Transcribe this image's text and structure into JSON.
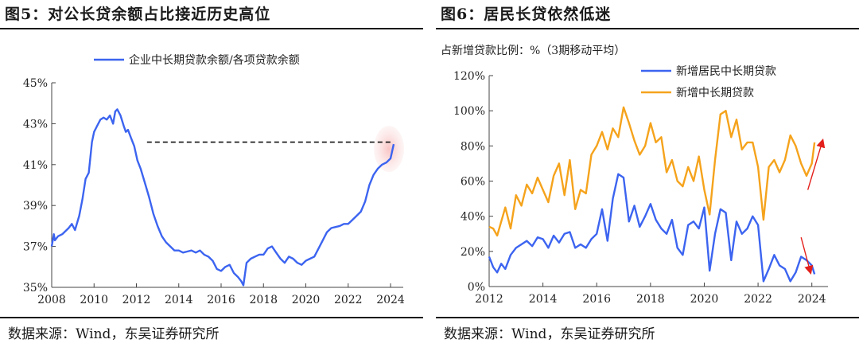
{
  "left": {
    "title": "图5：对公长贷余额占比接近历史高位",
    "source": "数据来源：Wind，东吴证券研究所",
    "chart_data": {
      "type": "line",
      "title": "",
      "ylabel": "",
      "xlabel": "",
      "xlim": [
        2008,
        2024.6
      ],
      "ylim": [
        35,
        45
      ],
      "yticks": [
        35,
        37,
        39,
        41,
        43,
        45
      ],
      "ytick_labels": [
        "35%",
        "37%",
        "39%",
        "41%",
        "43%",
        "45%"
      ],
      "xticks": [
        2008,
        2010,
        2012,
        2014,
        2016,
        2018,
        2020,
        2022,
        2024
      ],
      "xtick_labels": [
        "2008",
        "2010",
        "2012",
        "2014",
        "2016",
        "2018",
        "2020",
        "2022",
        "2024"
      ],
      "legend": "top-center",
      "series": [
        {
          "name": "企业中长期贷款余额/各项贷款余额",
          "color": "#3c64f0",
          "x": [
            2008.0,
            2008.1,
            2008.15,
            2008.3,
            2008.5,
            2008.8,
            2008.95,
            2009.1,
            2009.3,
            2009.45,
            2009.6,
            2009.75,
            2009.9,
            2010.0,
            2010.15,
            2010.3,
            2010.45,
            2010.6,
            2010.75,
            2010.9,
            2011.0,
            2011.1,
            2011.25,
            2011.4,
            2011.5,
            2011.6,
            2011.75,
            2011.9,
            2012.05,
            2012.2,
            2012.4,
            2012.6,
            2012.8,
            2013.0,
            2013.2,
            2013.4,
            2013.6,
            2013.8,
            2014.0,
            2014.2,
            2014.4,
            2014.6,
            2014.8,
            2015.0,
            2015.2,
            2015.4,
            2015.6,
            2015.8,
            2016.0,
            2016.2,
            2016.4,
            2016.6,
            2016.8,
            2016.95,
            2017.05,
            2017.2,
            2017.4,
            2017.6,
            2017.8,
            2018.0,
            2018.2,
            2018.4,
            2018.6,
            2018.8,
            2019.0,
            2019.2,
            2019.4,
            2019.6,
            2019.8,
            2020.0,
            2020.2,
            2020.4,
            2020.6,
            2020.8,
            2021.0,
            2021.2,
            2021.4,
            2021.6,
            2021.8,
            2022.0,
            2022.2,
            2022.4,
            2022.6,
            2022.8,
            2023.0,
            2023.2,
            2023.4,
            2023.6,
            2023.8,
            2024.0,
            2024.15
          ],
          "y": [
            37.0,
            37.6,
            37.3,
            37.5,
            37.6,
            37.9,
            38.1,
            37.8,
            38.5,
            39.3,
            40.3,
            40.6,
            42.1,
            42.6,
            42.9,
            43.2,
            43.3,
            43.2,
            43.4,
            43.0,
            43.6,
            43.7,
            43.4,
            42.9,
            42.6,
            42.7,
            42.3,
            41.9,
            41.2,
            40.8,
            40.1,
            39.4,
            38.6,
            38.0,
            37.5,
            37.2,
            37.0,
            36.8,
            36.8,
            36.7,
            36.75,
            36.8,
            36.7,
            36.8,
            36.6,
            36.5,
            36.3,
            35.9,
            35.8,
            36.0,
            36.1,
            35.7,
            35.5,
            35.3,
            35.1,
            36.2,
            36.4,
            36.5,
            36.6,
            36.6,
            36.9,
            37.0,
            36.7,
            36.4,
            36.2,
            36.5,
            36.4,
            36.2,
            36.1,
            36.3,
            36.4,
            36.5,
            36.9,
            37.3,
            37.7,
            37.9,
            37.95,
            38.0,
            38.1,
            38.1,
            38.3,
            38.5,
            38.7,
            39.2,
            40.0,
            40.5,
            40.8,
            41.0,
            41.1,
            41.3,
            42.0
          ]
        }
      ],
      "reference_line": {
        "y": 42.1,
        "x_from": 2012.5,
        "x_to": 2024.1,
        "style": "dashed"
      },
      "highlight": {
        "x": 2024.0,
        "y": 42.0
      }
    }
  },
  "right": {
    "title": "图6：居民长贷依然低迷",
    "source": "数据来源：Wind，东吴证券研究所",
    "chart_data": {
      "type": "line",
      "title": "",
      "ylabel": "占新增贷款比例：%（3期移动平均）",
      "xlabel": "",
      "xlim": [
        2012,
        2024.6
      ],
      "ylim": [
        0,
        120
      ],
      "yticks": [
        0,
        20,
        40,
        60,
        80,
        100,
        120
      ],
      "ytick_labels": [
        "0%",
        "20%",
        "40%",
        "60%",
        "80%",
        "100%",
        "120%"
      ],
      "xticks": [
        2012,
        2014,
        2016,
        2018,
        2020,
        2022,
        2024
      ],
      "xtick_labels": [
        "2012",
        "2014",
        "2016",
        "2018",
        "2020",
        "2022",
        "2024"
      ],
      "legend": "top-right",
      "series": [
        {
          "name": "新增居民中长期贷款",
          "color": "#3c64f0",
          "x": [
            2012.0,
            2012.15,
            2012.3,
            2012.45,
            2012.6,
            2012.8,
            2013.0,
            2013.2,
            2013.4,
            2013.6,
            2013.8,
            2014.0,
            2014.2,
            2014.4,
            2014.6,
            2014.8,
            2015.0,
            2015.2,
            2015.4,
            2015.6,
            2015.8,
            2016.0,
            2016.2,
            2016.4,
            2016.6,
            2016.8,
            2017.0,
            2017.2,
            2017.4,
            2017.6,
            2017.8,
            2018.0,
            2018.2,
            2018.4,
            2018.6,
            2018.8,
            2019.0,
            2019.2,
            2019.4,
            2019.6,
            2019.8,
            2020.0,
            2020.2,
            2020.4,
            2020.6,
            2020.8,
            2021.0,
            2021.2,
            2021.4,
            2021.6,
            2021.8,
            2022.0,
            2022.2,
            2022.4,
            2022.6,
            2022.8,
            2023.0,
            2023.2,
            2023.4,
            2023.6,
            2023.8,
            2024.0,
            2024.1
          ],
          "y": [
            17,
            11,
            8,
            13,
            10,
            18,
            22,
            24,
            26,
            23,
            28,
            27,
            22,
            29,
            25,
            30,
            31,
            22,
            24,
            22,
            27,
            30,
            44,
            26,
            50,
            64,
            62,
            37,
            46,
            34,
            40,
            47,
            38,
            33,
            30,
            38,
            22,
            18,
            35,
            37,
            33,
            45,
            9,
            30,
            44,
            42,
            15,
            37,
            30,
            33,
            40,
            35,
            3,
            10,
            18,
            12,
            10,
            3,
            8,
            17,
            15,
            12,
            7
          ]
        },
        {
          "name": "新增中长期贷款",
          "color": "#f5a31c",
          "x": [
            2012.0,
            2012.15,
            2012.3,
            2012.45,
            2012.6,
            2012.8,
            2013.0,
            2013.2,
            2013.4,
            2013.6,
            2013.8,
            2014.0,
            2014.2,
            2014.4,
            2014.6,
            2014.8,
            2015.0,
            2015.2,
            2015.4,
            2015.6,
            2015.8,
            2016.0,
            2016.2,
            2016.4,
            2016.6,
            2016.8,
            2017.0,
            2017.2,
            2017.4,
            2017.6,
            2017.8,
            2018.0,
            2018.2,
            2018.4,
            2018.6,
            2018.8,
            2019.0,
            2019.2,
            2019.4,
            2019.6,
            2019.8,
            2020.0,
            2020.2,
            2020.4,
            2020.6,
            2020.8,
            2021.0,
            2021.2,
            2021.4,
            2021.6,
            2021.8,
            2022.0,
            2022.2,
            2022.4,
            2022.6,
            2022.8,
            2023.0,
            2023.2,
            2023.4,
            2023.6,
            2023.8,
            2024.0,
            2024.1
          ],
          "y": [
            34,
            33,
            29,
            37,
            45,
            33,
            52,
            46,
            58,
            53,
            62,
            55,
            48,
            63,
            70,
            52,
            72,
            44,
            55,
            53,
            75,
            80,
            88,
            78,
            90,
            85,
            102,
            93,
            83,
            75,
            80,
            93,
            82,
            85,
            65,
            72,
            60,
            57,
            68,
            60,
            74,
            55,
            41,
            72,
            98,
            100,
            85,
            95,
            78,
            82,
            82,
            68,
            38,
            68,
            72,
            65,
            72,
            86,
            80,
            70,
            63,
            70,
            82
          ]
        }
      ],
      "arrows": [
        {
          "direction": "up",
          "from": [
            2023.85,
            55
          ],
          "to": [
            2024.4,
            83
          ]
        },
        {
          "direction": "down",
          "from": [
            2023.6,
            28
          ],
          "to": [
            2023.95,
            8
          ]
        }
      ]
    }
  }
}
